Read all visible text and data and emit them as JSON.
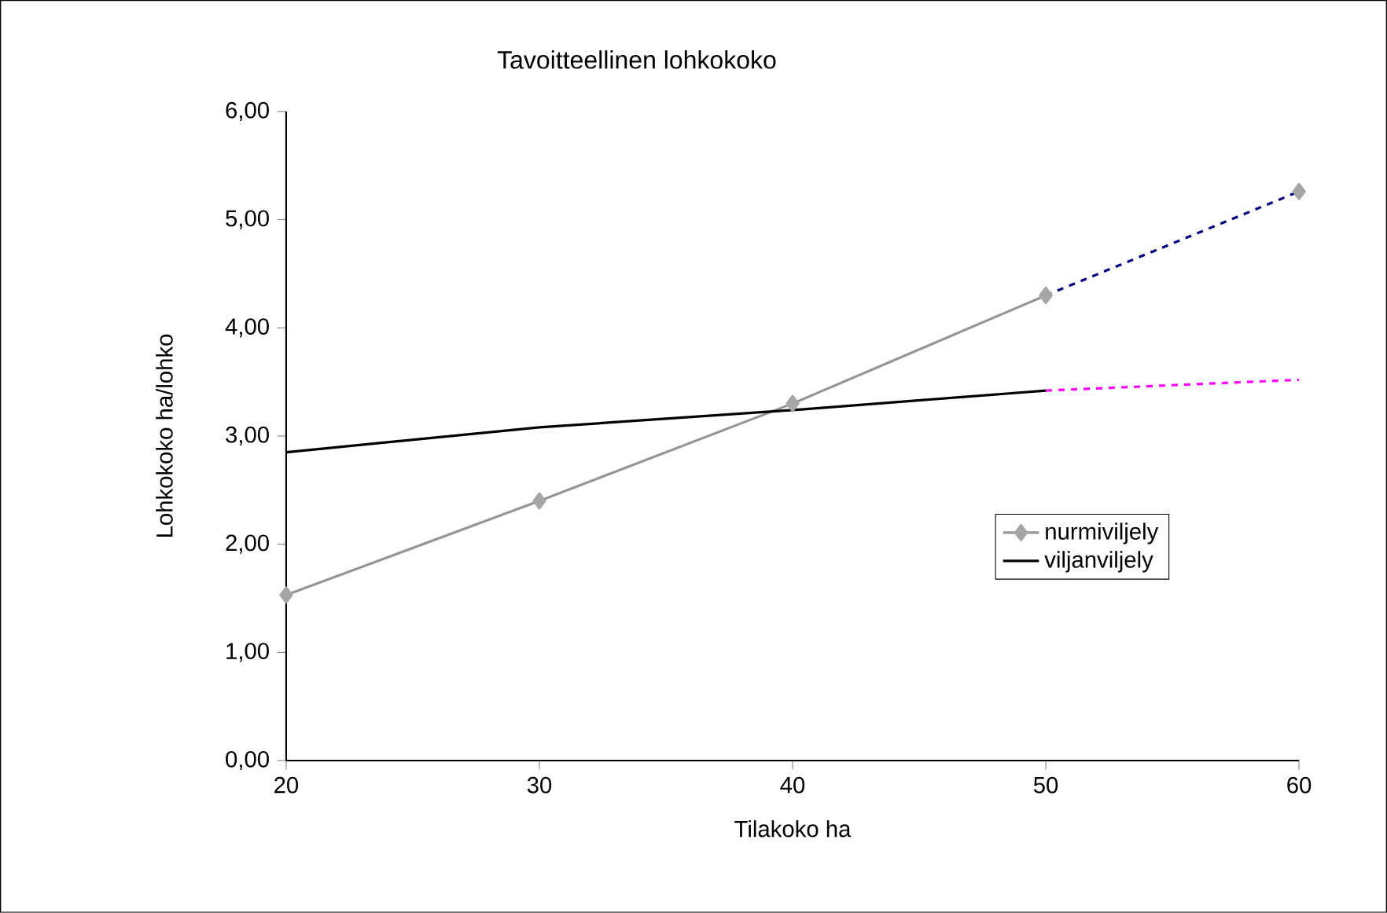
{
  "chart_data": {
    "type": "line",
    "title": "Tavoitteellinen lohkokoko",
    "xlabel": "Tilakoko ha",
    "ylabel": "Lohkokoko ha/lohko",
    "x": [
      20,
      30,
      40,
      50,
      60
    ],
    "series": [
      {
        "name": "nurmiviljely",
        "color": "#969696",
        "marker": "diamond",
        "line_style": "solid",
        "values": [
          1.53,
          2.4,
          3.3,
          4.3,
          null
        ]
      },
      {
        "color": "#000080",
        "marker": "diamond",
        "line_style": "dashed",
        "values": [
          null,
          null,
          null,
          4.3,
          5.26
        ]
      },
      {
        "name": "viljanviljely",
        "color": "#000000",
        "line_style": "solid",
        "values": [
          2.85,
          3.08,
          3.24,
          3.42,
          null
        ]
      },
      {
        "color": "#ff00ff",
        "line_style": "dashed",
        "values": [
          null,
          null,
          null,
          3.42,
          3.52
        ]
      }
    ],
    "xlim": [
      20,
      60
    ],
    "ylim": [
      0,
      6
    ],
    "xticks": [
      20,
      30,
      40,
      50,
      60
    ],
    "yticks": [
      {
        "value": 0,
        "label": "0,00"
      },
      {
        "value": 1,
        "label": "1,00"
      },
      {
        "value": 2,
        "label": "2,00"
      },
      {
        "value": 3,
        "label": "3,00"
      },
      {
        "value": 4,
        "label": "4,00"
      },
      {
        "value": 5,
        "label": "5,00"
      },
      {
        "value": 6,
        "label": "6,00"
      }
    ],
    "grid": false,
    "legend": "right"
  }
}
